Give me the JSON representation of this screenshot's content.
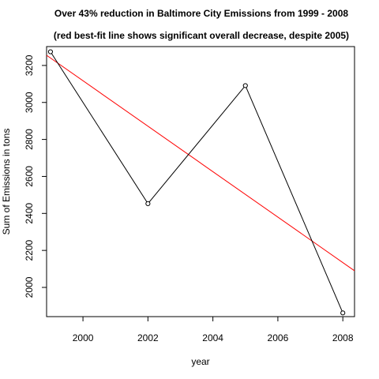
{
  "chart_data": {
    "type": "line",
    "title": "Over 43% reduction in Baltimore City Emissions from 1999 - 2008",
    "subtitle": "(red best-fit line shows significant overall decrease, despite 2005)",
    "xlabel": "year",
    "ylabel": "Sum of Emissions in tons",
    "xlim": [
      1998.88,
      2008.36
    ],
    "ylim": [
      1842,
      3302
    ],
    "xticks": [
      2000,
      2002,
      2004,
      2006,
      2008
    ],
    "yticks": [
      2000,
      2200,
      2400,
      2600,
      2800,
      3000,
      3200
    ],
    "grid": false,
    "legend": "none",
    "series": [
      {
        "x": [
          1999,
          2002,
          2005,
          2008
        ],
        "y": [
          3274,
          2453,
          3091,
          1862
        ],
        "color": "#000000",
        "marker": "open-circle"
      }
    ],
    "fit_line": {
      "points": [
        [
          1998.88,
          3255
        ],
        [
          2008.36,
          2090
        ]
      ],
      "color": "#ff0000"
    }
  }
}
